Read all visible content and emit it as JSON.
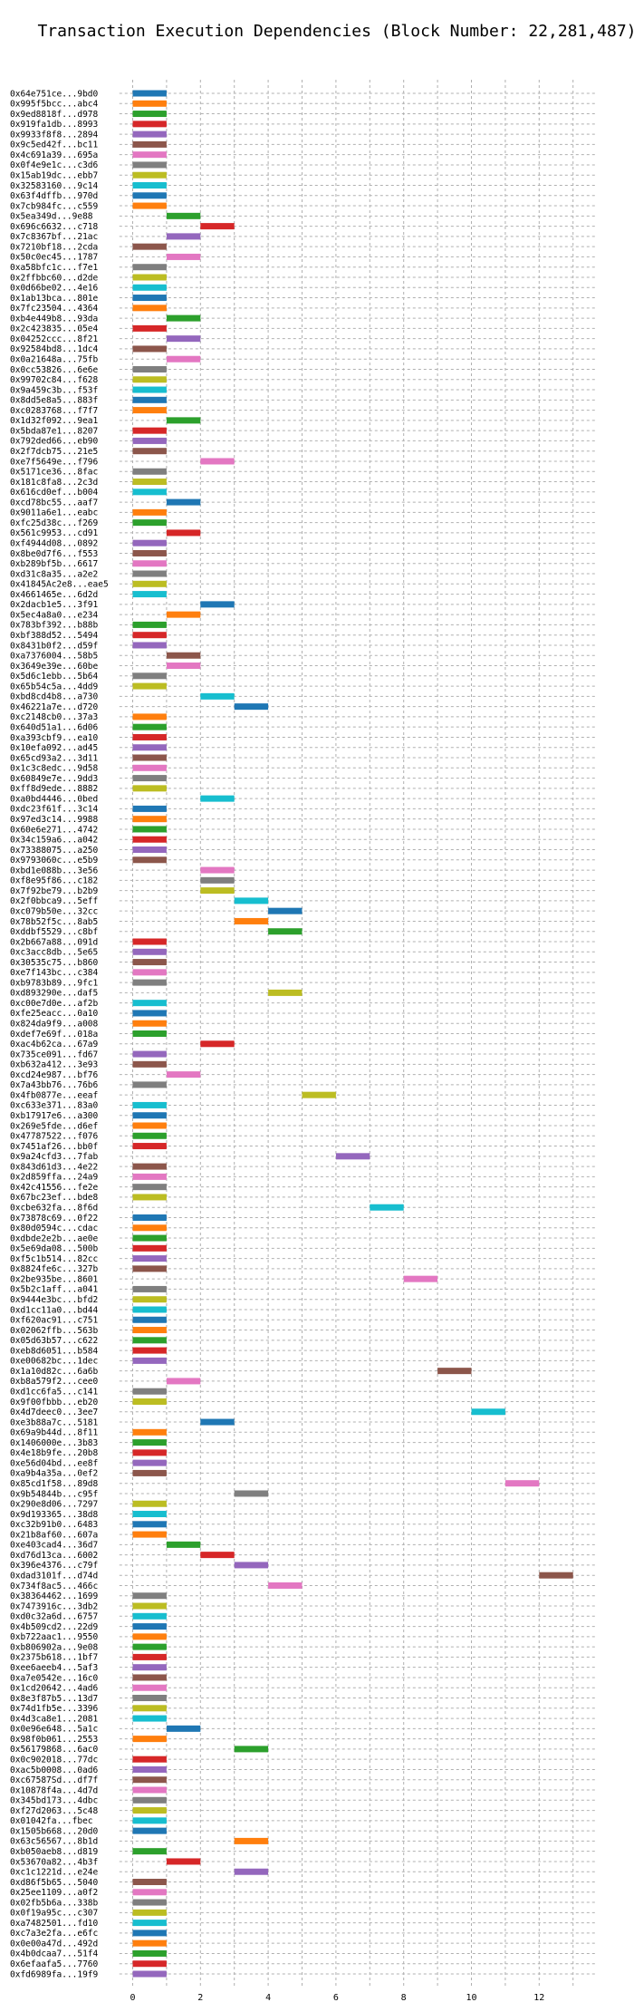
{
  "chart_data": {
    "type": "gantt",
    "title": "Transaction Execution Dependencies (Block Number: 22,281,487)",
    "xlabel": "",
    "ylabel": "",
    "xlim": [
      -0.5,
      13.8
    ],
    "x_ticks": [
      "0",
      "2",
      "4",
      "6",
      "8",
      "10",
      "12"
    ],
    "grid": true,
    "palette": [
      "#1f77b4",
      "#ff7f0e",
      "#2ca02c",
      "#d62728",
      "#9467bd",
      "#8c564b",
      "#e377c2",
      "#7f7f7f",
      "#bcbd22",
      "#17becf"
    ],
    "transactions": [
      {
        "hash": "0x64e751ce...9bd0",
        "start": 0
      },
      {
        "hash": "0x995f5bcc...abc4",
        "start": 0
      },
      {
        "hash": "0x9ed8818f...d978",
        "start": 0
      },
      {
        "hash": "0x919fa1db...8993",
        "start": 0
      },
      {
        "hash": "0x9933f8f8...2894",
        "start": 0
      },
      {
        "hash": "0x9c5ed42f...bc11",
        "start": 0
      },
      {
        "hash": "0x4c691a39...695a",
        "start": 0
      },
      {
        "hash": "0x0f4e9e1c...c3d6",
        "start": 0
      },
      {
        "hash": "0x15ab19dc...ebb7",
        "start": 0
      },
      {
        "hash": "0x32583160...9c14",
        "start": 0
      },
      {
        "hash": "0x63f4dffb...970d",
        "start": 0
      },
      {
        "hash": "0x7cb984fc...c559",
        "start": 0
      },
      {
        "hash": "0x5ea349d...9e88",
        "start": 1
      },
      {
        "hash": "0x696c6632...c718",
        "start": 2
      },
      {
        "hash": "0x7c8367bf...21ac",
        "start": 1
      },
      {
        "hash": "0x7210bf18...2cda",
        "start": 0
      },
      {
        "hash": "0x50c0ec45...1787",
        "start": 1
      },
      {
        "hash": "0xa58bfc1c...f7e1",
        "start": 0
      },
      {
        "hash": "0x2ffbbc60...d2de",
        "start": 0
      },
      {
        "hash": "0x0d66be02...4e16",
        "start": 0
      },
      {
        "hash": "0x1ab13bca...801e",
        "start": 0
      },
      {
        "hash": "0x7fc23504...4364",
        "start": 0
      },
      {
        "hash": "0xb4e449b8...93da",
        "start": 1
      },
      {
        "hash": "0x2c423835...05e4",
        "start": 0
      },
      {
        "hash": "0x04252ccc...8f21",
        "start": 1
      },
      {
        "hash": "0x92584bd8...1dc4",
        "start": 0
      },
      {
        "hash": "0x0a21648a...75fb",
        "start": 1
      },
      {
        "hash": "0x0cc53826...6e6e",
        "start": 0
      },
      {
        "hash": "0x99702c84...f628",
        "start": 0
      },
      {
        "hash": "0x9a459c3b...f53f",
        "start": 0
      },
      {
        "hash": "0x8dd5e8a5...883f",
        "start": 0
      },
      {
        "hash": "0xc0283768...f7f7",
        "start": 0
      },
      {
        "hash": "0x1d32f092...9ea1",
        "start": 1
      },
      {
        "hash": "0x5bda87e1...8207",
        "start": 0
      },
      {
        "hash": "0x792ded66...eb90",
        "start": 0
      },
      {
        "hash": "0x2f7dcb75...21e5",
        "start": 0
      },
      {
        "hash": "0xe7f5649e...f796",
        "start": 2
      },
      {
        "hash": "0x5171ce36...8fac",
        "start": 0
      },
      {
        "hash": "0x181c8fa8...2c3d",
        "start": 0
      },
      {
        "hash": "0x616cd0ef...b004",
        "start": 0
      },
      {
        "hash": "0xcd78bc55...aaf7",
        "start": 1
      },
      {
        "hash": "0x9011a6e1...eabc",
        "start": 0
      },
      {
        "hash": "0xfc25d38c...f269",
        "start": 0
      },
      {
        "hash": "0x561c9953...cd91",
        "start": 1
      },
      {
        "hash": "0xf4944d08...0892",
        "start": 0
      },
      {
        "hash": "0x8be0d7f6...f553",
        "start": 0
      },
      {
        "hash": "0xb289bf5b...6617",
        "start": 0
      },
      {
        "hash": "0xd31c8a35...a2e2",
        "start": 0
      },
      {
        "hash": "0x41845Ac2e8...eae5",
        "start": 0
      },
      {
        "hash": "0x4661465e...6d2d",
        "start": 0
      },
      {
        "hash": "0x2dacb1e5...3f91",
        "start": 2
      },
      {
        "hash": "0x5ec4a8a0...e234",
        "start": 1
      },
      {
        "hash": "0x783bf392...b88b",
        "start": 0
      },
      {
        "hash": "0xbf388d52...5494",
        "start": 0
      },
      {
        "hash": "0x8431b0f2...d59f",
        "start": 0
      },
      {
        "hash": "0xa7376004...58b5",
        "start": 1
      },
      {
        "hash": "0x3649e39e...60be",
        "start": 1
      },
      {
        "hash": "0x5d6c1ebb...5b64",
        "start": 0
      },
      {
        "hash": "0x65b54c5a...4dd9",
        "start": 0
      },
      {
        "hash": "0xbd8cd4b8...a730",
        "start": 2
      },
      {
        "hash": "0x46221a7e...d720",
        "start": 3
      },
      {
        "hash": "0xc2148cb0...37a3",
        "start": 0
      },
      {
        "hash": "0x640d51a1...6d06",
        "start": 0
      },
      {
        "hash": "0xa393cbf9...ea10",
        "start": 0
      },
      {
        "hash": "0x10efa092...ad45",
        "start": 0
      },
      {
        "hash": "0x65cd93a2...3d11",
        "start": 0
      },
      {
        "hash": "0x1c3c8edc...9d58",
        "start": 0
      },
      {
        "hash": "0x60849e7e...9dd3",
        "start": 0
      },
      {
        "hash": "0xff8d9ede...8882",
        "start": 0
      },
      {
        "hash": "0xa0bd4446...0bed",
        "start": 2
      },
      {
        "hash": "0xdc23f61f...3c14",
        "start": 0
      },
      {
        "hash": "0x97ed3c14...9988",
        "start": 0
      },
      {
        "hash": "0x60e6e271...4742",
        "start": 0
      },
      {
        "hash": "0x34c159a6...a042",
        "start": 0
      },
      {
        "hash": "0x73388075...a250",
        "start": 0
      },
      {
        "hash": "0x9793060c...e5b9",
        "start": 0
      },
      {
        "hash": "0xbd1e088b...3e56",
        "start": 2
      },
      {
        "hash": "0xf8e95f86...c182",
        "start": 2
      },
      {
        "hash": "0x7f92be79...b2b9",
        "start": 2
      },
      {
        "hash": "0x2f0bbca9...5eff",
        "start": 3
      },
      {
        "hash": "0xc079b50e...32cc",
        "start": 4
      },
      {
        "hash": "0x78b52f5c...8ab5",
        "start": 3
      },
      {
        "hash": "0xddbf5529...c8bf",
        "start": 4
      },
      {
        "hash": "0x2b667a88...091d",
        "start": 0
      },
      {
        "hash": "0xc3acc8db...5e65",
        "start": 0
      },
      {
        "hash": "0x30535c75...b860",
        "start": 0
      },
      {
        "hash": "0xe7f143bc...c384",
        "start": 0
      },
      {
        "hash": "0xb9783b89...9fc1",
        "start": 0
      },
      {
        "hash": "0xd893290e...daf5",
        "start": 4
      },
      {
        "hash": "0xc00e7d0e...af2b",
        "start": 0
      },
      {
        "hash": "0xfe25eacc...0a10",
        "start": 0
      },
      {
        "hash": "0x824da9f9...a008",
        "start": 0
      },
      {
        "hash": "0xdef7e69f...018a",
        "start": 0
      },
      {
        "hash": "0xac4b62ca...67a9",
        "start": 2
      },
      {
        "hash": "0x735ce091...fd67",
        "start": 0
      },
      {
        "hash": "0xb632a412...3e93",
        "start": 0
      },
      {
        "hash": "0xcd24e987...bf76",
        "start": 1
      },
      {
        "hash": "0x7a43bb76...76b6",
        "start": 0
      },
      {
        "hash": "0x4fb0877e...eeaf",
        "start": 5
      },
      {
        "hash": "0xc633e371...83a0",
        "start": 0
      },
      {
        "hash": "0xb17917e6...a300",
        "start": 0
      },
      {
        "hash": "0x269e5fde...d6ef",
        "start": 0
      },
      {
        "hash": "0x47787522...f076",
        "start": 0
      },
      {
        "hash": "0x7451af26...bb0f",
        "start": 0
      },
      {
        "hash": "0x9a24cfd3...7fab",
        "start": 6
      },
      {
        "hash": "0x843d61d3...4e22",
        "start": 0
      },
      {
        "hash": "0x2d859ffa...24a9",
        "start": 0
      },
      {
        "hash": "0x42c41556...fe2e",
        "start": 0
      },
      {
        "hash": "0x67bc23ef...bde8",
        "start": 0
      },
      {
        "hash": "0xcbe632fa...8f6d",
        "start": 7
      },
      {
        "hash": "0x73878c69...0f22",
        "start": 0
      },
      {
        "hash": "0x80d0594c...cdac",
        "start": 0
      },
      {
        "hash": "0xdbde2e2b...ae0e",
        "start": 0
      },
      {
        "hash": "0x5e69da08...500b",
        "start": 0
      },
      {
        "hash": "0xf5c1b514...82cc",
        "start": 0
      },
      {
        "hash": "0x8824fe6c...327b",
        "start": 0
      },
      {
        "hash": "0x2be935be...8601",
        "start": 8
      },
      {
        "hash": "0x5b2c1aff...a041",
        "start": 0
      },
      {
        "hash": "0x9444e3bc...bfd2",
        "start": 0
      },
      {
        "hash": "0xd1cc11a0...bd44",
        "start": 0
      },
      {
        "hash": "0xf620ac91...c751",
        "start": 0
      },
      {
        "hash": "0x02062ffb...563b",
        "start": 0
      },
      {
        "hash": "0x05d63b57...c622",
        "start": 0
      },
      {
        "hash": "0xeb8d6051...b584",
        "start": 0
      },
      {
        "hash": "0xe00682bc...1dec",
        "start": 0
      },
      {
        "hash": "0x1a10d82c...6a6b",
        "start": 9
      },
      {
        "hash": "0xb8a579f2...cee0",
        "start": 1
      },
      {
        "hash": "0xd1cc6fa5...c141",
        "start": 0
      },
      {
        "hash": "0x9f00fbbb...eb20",
        "start": 0
      },
      {
        "hash": "0x4d7deec0...3ee7",
        "start": 10
      },
      {
        "hash": "0xe3b88a7c...5181",
        "start": 2
      },
      {
        "hash": "0x69a9b44d...8f11",
        "start": 0
      },
      {
        "hash": "0x1406000e...3b83",
        "start": 0
      },
      {
        "hash": "0x4e18b9fe...20b8",
        "start": 0
      },
      {
        "hash": "0xe56d04bd...ee8f",
        "start": 0
      },
      {
        "hash": "0xa9b4a35a...0ef2",
        "start": 0
      },
      {
        "hash": "0x85cd1f58...89d8",
        "start": 11
      },
      {
        "hash": "0x9b54844b...c95f",
        "start": 3
      },
      {
        "hash": "0x290e8d06...7297",
        "start": 0
      },
      {
        "hash": "0x9d193365...38d8",
        "start": 0
      },
      {
        "hash": "0xc32b91b0...6483",
        "start": 0
      },
      {
        "hash": "0x21b8af60...607a",
        "start": 0
      },
      {
        "hash": "0xe403cad4...36d7",
        "start": 1
      },
      {
        "hash": "0xd76d13ca...6002",
        "start": 2
      },
      {
        "hash": "0x396e4376...c79f",
        "start": 3
      },
      {
        "hash": "0xdad3101f...d74d",
        "start": 12
      },
      {
        "hash": "0x734f8ac5...466c",
        "start": 4
      },
      {
        "hash": "0x38364462...1699",
        "start": 0
      },
      {
        "hash": "0x7473916c...3db2",
        "start": 0
      },
      {
        "hash": "0xd0c32a6d...6757",
        "start": 0
      },
      {
        "hash": "0x4b509cd2...22d9",
        "start": 0
      },
      {
        "hash": "0xb722aac1...9550",
        "start": 0
      },
      {
        "hash": "0xb806902a...9e08",
        "start": 0
      },
      {
        "hash": "0x2375b618...1bf7",
        "start": 0
      },
      {
        "hash": "0xee6aeeb4...5af3",
        "start": 0
      },
      {
        "hash": "0xa7e0542e...16c0",
        "start": 0
      },
      {
        "hash": "0x1cd20642...4ad6",
        "start": 0
      },
      {
        "hash": "0x8e3f87b5...13d7",
        "start": 0
      },
      {
        "hash": "0x74d1fb5e...3396",
        "start": 0
      },
      {
        "hash": "0x4d3ca8e1...2081",
        "start": 0
      },
      {
        "hash": "0x0e96e648...5a1c",
        "start": 1
      },
      {
        "hash": "0x98f0b061...2553",
        "start": 0
      },
      {
        "hash": "0x56179868...6ac0",
        "start": 3
      },
      {
        "hash": "0x0c902018...77dc",
        "start": 0
      },
      {
        "hash": "0xac5b0008...0ad6",
        "start": 0
      },
      {
        "hash": "0xc67587Sd...df7f",
        "start": 0
      },
      {
        "hash": "0x10878f4a...4d7d",
        "start": 0
      },
      {
        "hash": "0x345bd173...4dbc",
        "start": 0
      },
      {
        "hash": "0xf27d2063...5c48",
        "start": 0
      },
      {
        "hash": "0x01042fa...fbec",
        "start": 0
      },
      {
        "hash": "0x1505b668...20d0",
        "start": 0
      },
      {
        "hash": "0x63c56567...8b1d",
        "start": 3
      },
      {
        "hash": "0xb050aeb8...d819",
        "start": 0
      },
      {
        "hash": "0x53670a82...4b3f",
        "start": 1
      },
      {
        "hash": "0xc1c1221d...e24e",
        "start": 3
      },
      {
        "hash": "0xd86f5b65...5040",
        "start": 0
      },
      {
        "hash": "0x25ee1109...a0f2",
        "start": 0
      },
      {
        "hash": "0x02fb5b6a...338b",
        "start": 0
      },
      {
        "hash": "0x0f19a95c...c307",
        "start": 0
      },
      {
        "hash": "0xa7482501...fd10",
        "start": 0
      },
      {
        "hash": "0xc7a3e2fa...e6fc",
        "start": 0
      },
      {
        "hash": "0x0e00a47d...492d",
        "start": 0
      },
      {
        "hash": "0x4b0dcaa7...51f4",
        "start": 0
      },
      {
        "hash": "0x6efaafa5...7760",
        "start": 0
      },
      {
        "hash": "0xfd6989fa...19f9",
        "start": 0
      }
    ]
  }
}
